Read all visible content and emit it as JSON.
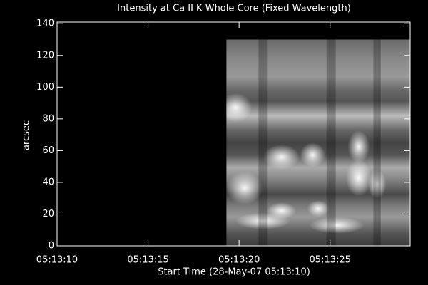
{
  "chart_data": {
    "type": "image",
    "title": "Intensity at Ca II K Whole Core (Fixed Wavelength)",
    "x_label": "Start Time (28-May-07 05:13:10)",
    "y_label": "arcsec",
    "xlim": [
      0,
      19.4
    ],
    "ylim": [
      0,
      141
    ],
    "xticks": [
      {
        "value": 0,
        "label": "05:13:10"
      },
      {
        "value": 5,
        "label": "05:13:15"
      },
      {
        "value": 10,
        "label": "05:13:20"
      },
      {
        "value": 15,
        "label": "05:13:25"
      }
    ],
    "yticks": [
      0,
      20,
      40,
      60,
      80,
      100,
      120,
      140
    ],
    "image": {
      "x": [
        9.3,
        19.4
      ],
      "y": [
        0,
        130
      ]
    }
  }
}
